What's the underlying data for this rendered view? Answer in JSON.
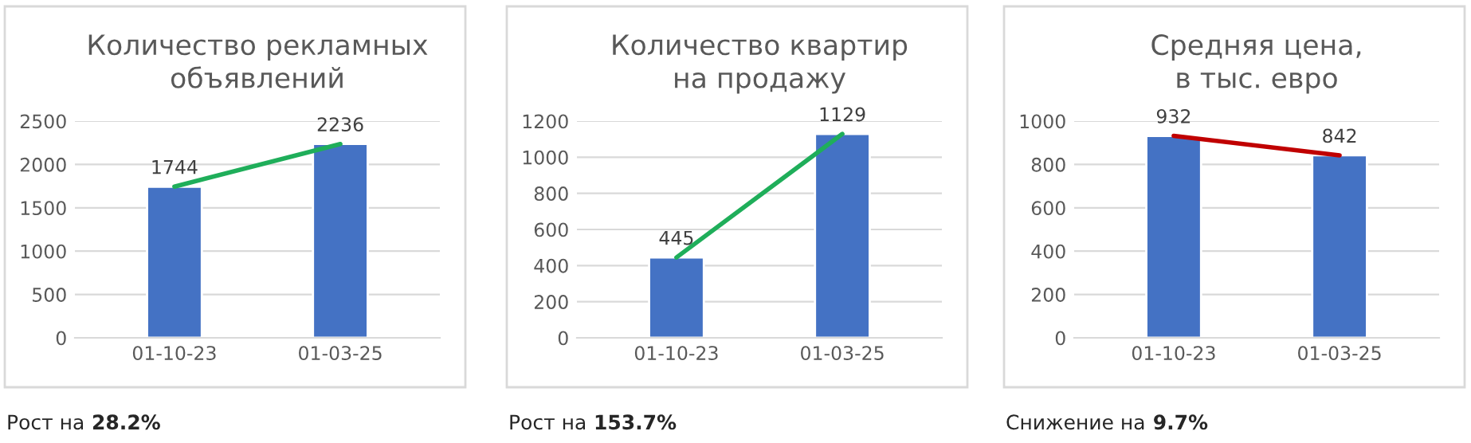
{
  "chart_data": [
    {
      "type": "bar",
      "title": "Количество рекламных\nобъявлений",
      "categories": [
        "01-10-23",
        "01-03-25"
      ],
      "series": [
        {
          "color": "#4472c4",
          "values": [
            1744,
            2236
          ],
          "value_labels": [
            "1744",
            "2236"
          ]
        },
        {
          "type": "line",
          "color": "#1fae5a",
          "values": [
            1744,
            2236
          ]
        }
      ],
      "ylim": [
        0,
        2500
      ],
      "yticks": [
        0,
        500,
        1000,
        1500,
        2000,
        2500
      ],
      "grid": "y",
      "annotations": [
        "Рост на 28.2%"
      ]
    },
    {
      "type": "bar",
      "title": "Количество квартир\nна продажу",
      "categories": [
        "01-10-23",
        "01-03-25"
      ],
      "series": [
        {
          "color": "#4472c4",
          "values": [
            445,
            1129
          ],
          "value_labels": [
            "445",
            "1129"
          ]
        },
        {
          "type": "line",
          "color": "#1fae5a",
          "values": [
            445,
            1129
          ]
        }
      ],
      "ylim": [
        0,
        1200
      ],
      "yticks": [
        0,
        200,
        400,
        600,
        800,
        1000,
        1200
      ],
      "grid": "y",
      "annotations": [
        "Рост на 153.7%"
      ]
    },
    {
      "type": "bar",
      "title": "Средняя цена,\nв тыс. евро",
      "categories": [
        "01-10-23",
        "01-03-25"
      ],
      "series": [
        {
          "color": "#4472c4",
          "values": [
            932,
            842
          ],
          "value_labels": [
            "932",
            "842"
          ]
        },
        {
          "type": "line",
          "color": "#c00000",
          "values": [
            932,
            842
          ]
        }
      ],
      "ylim": [
        0,
        1000
      ],
      "yticks": [
        0,
        200,
        400,
        600,
        800,
        1000
      ],
      "grid": "y",
      "annotations": [
        "Снижение на 9.7%"
      ]
    }
  ]
}
